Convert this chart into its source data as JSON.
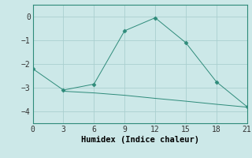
{
  "xlabel": "Humidex (Indice chaleur)",
  "background_color": "#cce8e8",
  "line1_x": [
    0,
    3,
    6,
    9,
    12,
    15,
    18,
    21
  ],
  "line1_y": [
    -2.2,
    -3.1,
    -2.85,
    -0.6,
    -0.05,
    -1.1,
    -2.75,
    -3.8
  ],
  "line2_x": [
    3,
    6,
    9,
    12,
    15,
    18,
    21
  ],
  "line2_y": [
    -3.15,
    -3.22,
    -3.32,
    -3.45,
    -3.57,
    -3.7,
    -3.82
  ],
  "line_color": "#2e8b7a",
  "marker": "D",
  "markersize": 2.5,
  "xlim": [
    0,
    21
  ],
  "ylim": [
    -4.5,
    0.5
  ],
  "yticks": [
    0,
    -1,
    -2,
    -3,
    -4
  ],
  "xticks": [
    0,
    3,
    6,
    9,
    12,
    15,
    18,
    21
  ],
  "grid_color": "#aacfcf",
  "xlabel_fontsize": 7.5,
  "tick_fontsize": 7
}
